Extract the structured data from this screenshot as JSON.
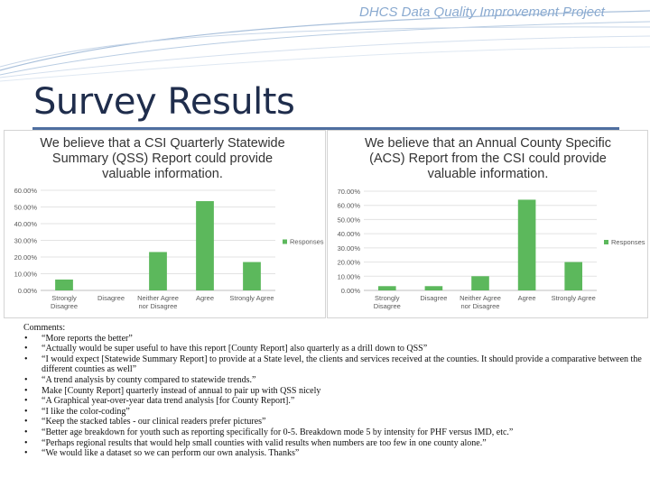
{
  "header": {
    "title": "DHCS Data Quality Improvement Project"
  },
  "slide": {
    "title": "Survey Results"
  },
  "comments": {
    "heading": "Comments:",
    "items": [
      "“More reports the better”",
      "“Actually would be super useful to have this report [County Report] also quarterly as a drill down to QSS”",
      "“I would expect [Statewide Summary Report] to provide at a State level, the clients and services received at the counties. It should provide a comparative between the different counties as well”",
      "“A trend analysis by county compared to statewide trends.”",
      "Make [County Report] quarterly instead of annual to pair up with QSS nicely",
      "“A Graphical year-over-year data trend analysis [for County Report].”",
      "“I like the color-coding”",
      "“Keep the stacked tables - our clinical readers prefer pictures”",
      "“Better age breakdown for youth such as reporting specifically for 0-5. Breakdown mode 5 by intensity for PHF versus IMD, etc.”",
      "“Perhaps regional results that would help small counties with valid results when numbers are too few in one county alone.”",
      "“We would like a dataset so we can perform our own analysis. Thanks”"
    ]
  },
  "chart_data": [
    {
      "type": "bar",
      "title": "We believe that a CSI Quarterly Statewide Summary (QSS) Report could provide valuable information.",
      "categories": [
        "Strongly Disagree",
        "Disagree",
        "Neither Agree nor Disagree",
        "Agree",
        "Strongly Agree"
      ],
      "category_lines": [
        [
          "Strongly",
          "Disagree"
        ],
        [
          "Disagree"
        ],
        [
          "Neither Agree",
          "nor Disagree"
        ],
        [
          "Agree"
        ],
        [
          "Strongly Agree"
        ]
      ],
      "series": [
        {
          "name": "Responses",
          "values": [
            6.5,
            0,
            23,
            53.5,
            17
          ]
        }
      ],
      "yticks": [
        "0.00%",
        "10.00%",
        "20.00%",
        "30.00%",
        "40.00%",
        "50.00%",
        "60.00%"
      ],
      "ylim": [
        0,
        60
      ],
      "legend": "right",
      "bar_color": "#5cb85c"
    },
    {
      "type": "bar",
      "title": "We believe that an Annual County Specific (ACS) Report from the CSI could provide valuable information.",
      "categories": [
        "Strongly Disagree",
        "Disagree",
        "Neither Agree nor Disagree",
        "Agree",
        "Strongly Agree"
      ],
      "category_lines": [
        [
          "Strongly",
          "Disagree"
        ],
        [
          "Disagree"
        ],
        [
          "Neither Agree",
          "nor Disagree"
        ],
        [
          "Agree"
        ],
        [
          "Strongly Agree"
        ]
      ],
      "series": [
        {
          "name": "Responses",
          "values": [
            3,
            3,
            10,
            64,
            20
          ]
        }
      ],
      "yticks": [
        "0.00%",
        "10.00%",
        "20.00%",
        "30.00%",
        "40.00%",
        "50.00%",
        "60.00%",
        "70.00%"
      ],
      "ylim": [
        0,
        70
      ],
      "legend": "right",
      "bar_color": "#5cb85c"
    }
  ]
}
